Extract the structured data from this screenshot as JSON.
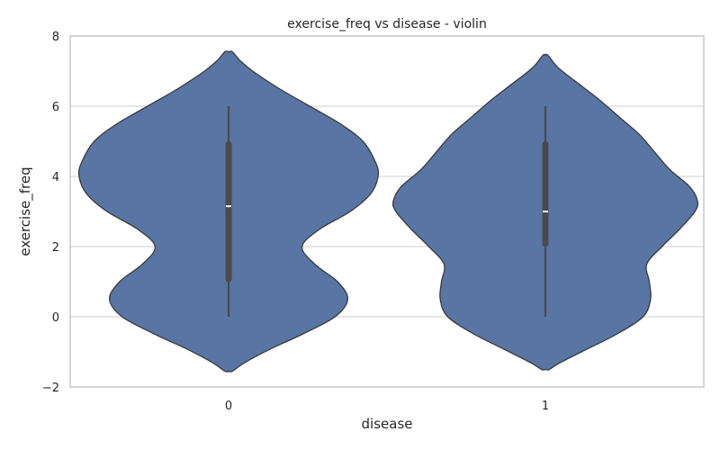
{
  "chart_data": {
    "type": "violin",
    "title": "exercise_freq vs disease - violin",
    "xlabel": "disease",
    "ylabel": "exercise_freq",
    "categories": [
      "0",
      "1"
    ],
    "ylim": [
      -2,
      8
    ],
    "yticks": [
      -2,
      0,
      2,
      4,
      6,
      8
    ],
    "grid": "horizontal",
    "colors": {
      "fill": "#5875a4",
      "outline": "#3b3b3b",
      "box": "#4a4a4a",
      "median": "#ffffff",
      "grid": "#cccccc",
      "frame": "#cccccc"
    },
    "groups": [
      {
        "category": "0",
        "whisker": [
          0,
          6
        ],
        "q1": 1,
        "median": 3.15,
        "q3": 5,
        "density_y": [
          -1.55,
          -1.3,
          -0.9,
          -0.5,
          0,
          0.5,
          1.0,
          1.5,
          2.0,
          2.5,
          3.0,
          3.5,
          4.0,
          4.4,
          5.0,
          5.5,
          6.0,
          6.5,
          7.0,
          7.3,
          7.55
        ],
        "density_w": [
          0.03,
          0.13,
          0.34,
          0.58,
          0.84,
          0.94,
          0.86,
          0.68,
          0.58,
          0.72,
          0.96,
          1.12,
          1.18,
          1.16,
          1.06,
          0.88,
          0.64,
          0.4,
          0.19,
          0.09,
          0.03
        ]
      },
      {
        "category": "1",
        "whisker": [
          0,
          6
        ],
        "q1": 2,
        "median": 3,
        "q3": 5,
        "density_y": [
          -1.5,
          -1.3,
          -0.9,
          -0.5,
          0,
          0.5,
          1.0,
          1.5,
          2.0,
          2.5,
          3.0,
          3.3,
          3.7,
          4.2,
          4.7,
          5.2,
          5.7,
          6.2,
          6.7,
          7.1,
          7.45
        ],
        "density_w": [
          0.03,
          0.12,
          0.34,
          0.56,
          0.77,
          0.83,
          0.82,
          0.8,
          0.92,
          1.06,
          1.18,
          1.2,
          1.14,
          0.98,
          0.86,
          0.74,
          0.58,
          0.42,
          0.24,
          0.1,
          0.02
        ]
      }
    ]
  }
}
